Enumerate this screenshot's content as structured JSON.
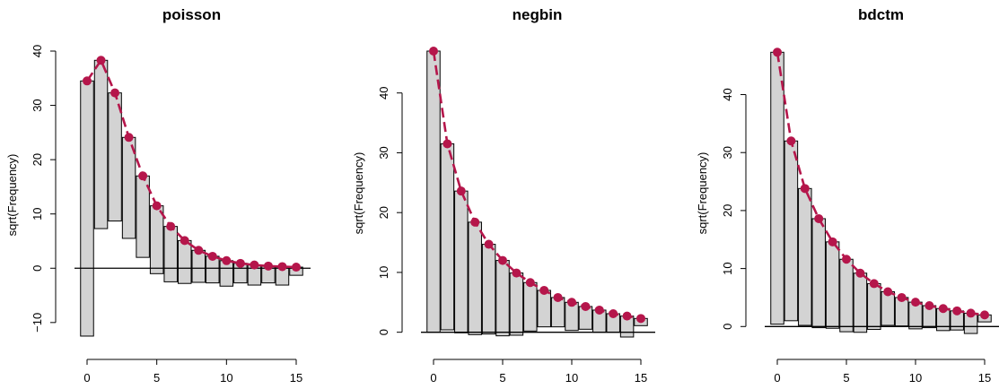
{
  "colors": {
    "expected_line": "#b5164b",
    "bar_fill": "#d3d3d3"
  },
  "chart_data": [
    {
      "type": "rootogram",
      "title": "poisson",
      "xlabel": "",
      "ylabel": "sqrt(Frequency)",
      "x": [
        0,
        1,
        2,
        3,
        4,
        5,
        6,
        7,
        8,
        9,
        10,
        11,
        12,
        13,
        14,
        15
      ],
      "expected": [
        34.5,
        38.3,
        32.3,
        24.1,
        17.0,
        11.5,
        7.7,
        5.1,
        3.3,
        2.2,
        1.4,
        0.9,
        0.6,
        0.4,
        0.3,
        0.2
      ],
      "bar_bottom": [
        -12.5,
        7.3,
        8.7,
        5.5,
        2.0,
        -1.0,
        -2.5,
        -2.8,
        -2.6,
        -2.7,
        -3.3,
        -2.7,
        -3.1,
        -2.7,
        -3.1,
        -1.3
      ],
      "xticks": [
        0,
        5,
        10,
        15
      ],
      "yticks": [
        -10,
        0,
        10,
        20,
        30,
        40
      ],
      "ylim": [
        -13,
        40
      ],
      "reference_line": 0
    },
    {
      "type": "rootogram",
      "title": "negbin",
      "xlabel": "",
      "ylabel": "sqrt(Frequency)",
      "x": [
        0,
        1,
        2,
        3,
        4,
        5,
        6,
        7,
        8,
        9,
        10,
        11,
        12,
        13,
        14,
        15
      ],
      "expected": [
        47.0,
        31.5,
        23.6,
        18.4,
        14.7,
        12.0,
        9.9,
        8.3,
        7.0,
        5.8,
        5.0,
        4.3,
        3.7,
        3.1,
        2.7,
        2.3
      ],
      "bar_bottom": [
        0.0,
        0.4,
        -0.1,
        -0.4,
        -0.3,
        -0.6,
        -0.5,
        0.2,
        0.9,
        0.9,
        0.3,
        0.5,
        0.0,
        0.0,
        -0.8,
        1.1
      ],
      "xticks": [
        0,
        5,
        10,
        15
      ],
      "yticks": [
        0,
        10,
        20,
        30,
        40
      ],
      "ylim": [
        -0.5,
        47
      ],
      "reference_line": 0
    },
    {
      "type": "rootogram",
      "title": "bdctm",
      "xlabel": "",
      "ylabel": "sqrt(Frequency)",
      "x": [
        0,
        1,
        2,
        3,
        4,
        5,
        6,
        7,
        8,
        9,
        10,
        11,
        12,
        13,
        14,
        15
      ],
      "expected": [
        47.3,
        32.0,
        23.8,
        18.6,
        14.6,
        11.6,
        9.2,
        7.4,
        6.0,
        5.0,
        4.2,
        3.6,
        3.1,
        2.7,
        2.3,
        2.0
      ],
      "bar_bottom": [
        0.4,
        1.0,
        0.2,
        -0.2,
        -0.3,
        -0.9,
        -1.0,
        -0.5,
        0.2,
        0.1,
        -0.4,
        -0.2,
        -0.7,
        -0.6,
        -1.2,
        0.8
      ],
      "xticks": [
        0,
        5,
        10,
        15
      ],
      "yticks": [
        0,
        10,
        20,
        30,
        40
      ],
      "ylim": [
        -1.5,
        47.5
      ],
      "reference_line": 0
    }
  ]
}
